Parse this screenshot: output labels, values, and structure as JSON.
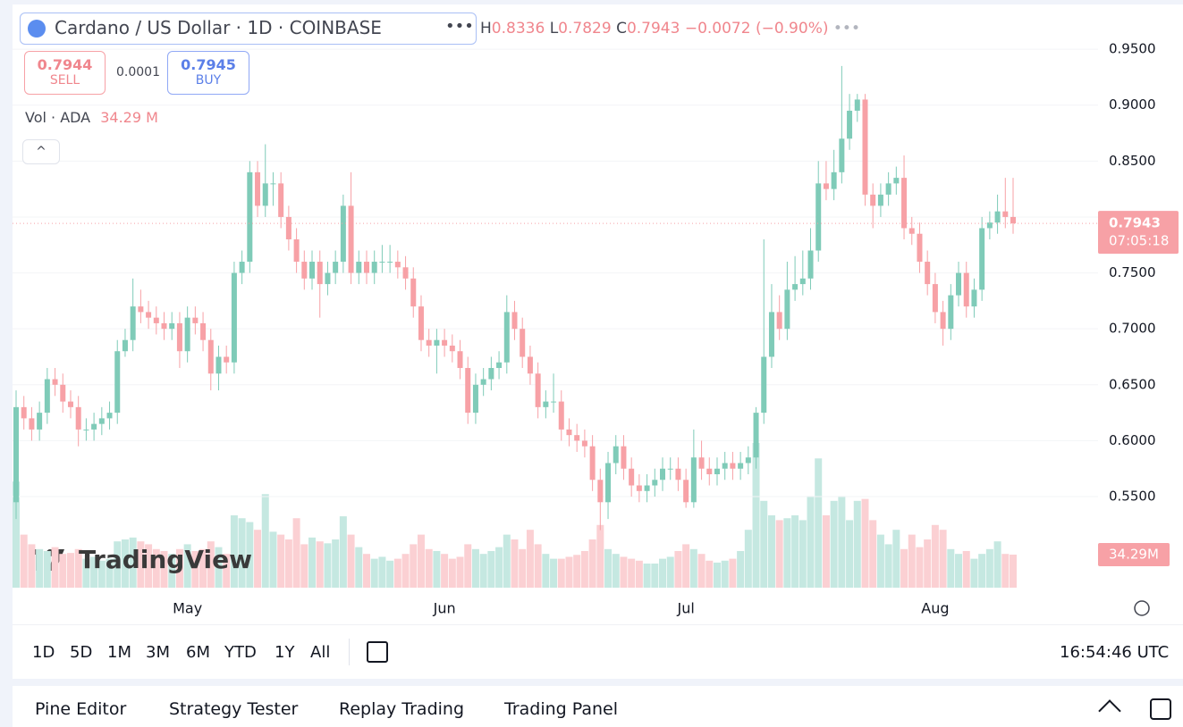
{
  "header": {
    "symbol": "Cardano / US Dollar · 1D · COINBASE",
    "ohlc": [
      {
        "key": "H",
        "value": "0.8336"
      },
      {
        "key": "L",
        "value": "0.7829"
      },
      {
        "key": "C",
        "value": "0.7943"
      }
    ],
    "change": "−0.0072 (−0.90%)",
    "sell": {
      "price": "0.7944",
      "label": "SELL"
    },
    "spread": "0.0001",
    "buy": {
      "price": "0.7945",
      "label": "BUY"
    },
    "volume_legend": {
      "label": "Vol · ADA",
      "value": "34.29 M"
    }
  },
  "chart_data": {
    "type": "candlestick",
    "categories": [
      null,
      null,
      null,
      null,
      null,
      null,
      null,
      null,
      null,
      null,
      null,
      null,
      null,
      null,
      null,
      null,
      null,
      null,
      null,
      null,
      null,
      null,
      "May",
      null,
      null,
      null,
      null,
      null,
      null,
      null,
      null,
      null,
      null,
      null,
      null,
      null,
      null,
      null,
      null,
      null,
      null,
      null,
      null,
      null,
      null,
      null,
      null,
      null,
      null,
      null,
      null,
      null,
      null,
      null,
      null,
      "Jun",
      null,
      null,
      null,
      null,
      null,
      null,
      null,
      null,
      null,
      null,
      null,
      null,
      null,
      null,
      null,
      null,
      null,
      null,
      null,
      null,
      null,
      null,
      null,
      null,
      null,
      null,
      null,
      null,
      null,
      null,
      "Jul",
      null,
      null,
      null,
      null,
      null,
      null,
      null,
      null,
      null,
      null,
      null,
      null,
      null,
      null,
      null,
      null,
      null,
      null,
      null,
      null,
      null,
      null,
      null,
      null,
      null,
      null,
      null,
      null,
      null,
      null,
      null,
      "Aug",
      null,
      null,
      null,
      null,
      null,
      null,
      null,
      null,
      null,
      null
    ],
    "open": [
      0.545,
      0.63,
      0.62,
      0.61,
      0.625,
      0.655,
      0.65,
      0.635,
      0.63,
      0.61,
      0.61,
      0.615,
      0.62,
      0.625,
      0.68,
      0.69,
      0.72,
      0.715,
      0.71,
      0.705,
      0.7,
      0.705,
      0.68,
      0.71,
      0.705,
      0.69,
      0.66,
      0.675,
      0.67,
      0.75,
      0.76,
      0.84,
      0.81,
      0.83,
      0.83,
      0.8,
      0.78,
      0.76,
      0.745,
      0.76,
      0.74,
      0.75,
      0.76,
      0.81,
      0.75,
      0.76,
      0.75,
      0.76,
      0.76,
      0.76,
      0.755,
      0.745,
      0.72,
      0.69,
      0.685,
      0.69,
      0.685,
      0.68,
      0.665,
      0.625,
      0.65,
      0.655,
      0.665,
      0.67,
      0.715,
      0.7,
      0.675,
      0.66,
      0.63,
      0.635,
      0.635,
      0.61,
      0.605,
      0.6,
      0.595,
      0.565,
      0.545,
      0.58,
      0.595,
      0.575,
      0.56,
      0.555,
      0.56,
      0.565,
      0.575,
      0.575,
      0.565,
      0.545,
      0.585,
      0.575,
      0.57,
      0.575,
      0.58,
      0.575,
      0.58,
      0.585,
      0.625,
      0.675,
      0.715,
      0.7,
      0.735,
      0.74,
      0.745,
      0.77,
      0.83,
      0.825,
      0.84,
      0.87,
      0.895,
      0.905,
      0.82,
      0.81,
      0.82,
      0.83,
      0.835,
      0.79,
      0.785,
      0.76,
      0.74,
      0.715,
      0.7,
      0.73,
      0.75,
      0.72,
      0.735,
      0.79,
      0.795,
      0.805,
      0.8
    ],
    "high": [
      0.645,
      0.64,
      0.63,
      0.635,
      0.665,
      0.665,
      0.66,
      0.645,
      0.64,
      0.62,
      0.625,
      0.63,
      0.635,
      0.69,
      0.7,
      0.745,
      0.735,
      0.725,
      0.72,
      0.715,
      0.715,
      0.715,
      0.72,
      0.72,
      0.715,
      0.7,
      0.685,
      0.685,
      0.76,
      0.77,
      0.85,
      0.85,
      0.865,
      0.84,
      0.84,
      0.81,
      0.79,
      0.77,
      0.77,
      0.77,
      0.76,
      0.77,
      0.82,
      0.84,
      0.77,
      0.77,
      0.77,
      0.775,
      0.775,
      0.77,
      0.765,
      0.755,
      0.73,
      0.7,
      0.7,
      0.7,
      0.695,
      0.69,
      0.675,
      0.66,
      0.665,
      0.675,
      0.68,
      0.73,
      0.725,
      0.71,
      0.685,
      0.67,
      0.645,
      0.66,
      0.645,
      0.62,
      0.615,
      0.61,
      0.605,
      0.575,
      0.59,
      0.605,
      0.605,
      0.585,
      0.57,
      0.57,
      0.575,
      0.585,
      0.585,
      0.585,
      0.575,
      0.61,
      0.6,
      0.585,
      0.585,
      0.59,
      0.59,
      0.59,
      0.595,
      0.63,
      0.78,
      0.74,
      0.73,
      0.76,
      0.765,
      0.77,
      0.79,
      0.85,
      0.85,
      0.86,
      0.935,
      0.91,
      0.91,
      0.91,
      0.83,
      0.83,
      0.84,
      0.845,
      0.855,
      0.8,
      0.795,
      0.77,
      0.75,
      0.725,
      0.74,
      0.76,
      0.76,
      0.745,
      0.8,
      0.805,
      0.82,
      0.835,
      0.835
    ],
    "low": [
      0.53,
      0.61,
      0.6,
      0.6,
      0.615,
      0.64,
      0.625,
      0.62,
      0.595,
      0.6,
      0.6,
      0.605,
      0.61,
      0.615,
      0.675,
      0.68,
      0.705,
      0.7,
      0.695,
      0.69,
      0.69,
      0.665,
      0.67,
      0.695,
      0.68,
      0.645,
      0.645,
      0.66,
      0.66,
      0.74,
      0.75,
      0.8,
      0.8,
      0.81,
      0.79,
      0.77,
      0.75,
      0.735,
      0.735,
      0.71,
      0.73,
      0.74,
      0.75,
      0.74,
      0.74,
      0.74,
      0.74,
      0.75,
      0.75,
      0.745,
      0.735,
      0.71,
      0.68,
      0.675,
      0.66,
      0.675,
      0.67,
      0.655,
      0.615,
      0.615,
      0.64,
      0.645,
      0.655,
      0.66,
      0.69,
      0.665,
      0.65,
      0.62,
      0.62,
      0.625,
      0.6,
      0.595,
      0.59,
      0.585,
      0.555,
      0.52,
      0.53,
      0.57,
      0.565,
      0.55,
      0.545,
      0.545,
      0.55,
      0.555,
      0.565,
      0.555,
      0.54,
      0.54,
      0.565,
      0.56,
      0.56,
      0.565,
      0.565,
      0.565,
      0.57,
      0.575,
      0.615,
      0.665,
      0.69,
      0.69,
      0.725,
      0.73,
      0.735,
      0.76,
      0.815,
      0.815,
      0.83,
      0.86,
      0.885,
      0.81,
      0.79,
      0.8,
      0.81,
      0.82,
      0.78,
      0.775,
      0.75,
      0.73,
      0.705,
      0.685,
      0.69,
      0.72,
      0.71,
      0.71,
      0.725,
      0.78,
      0.785,
      0.79,
      0.785
    ],
    "close": [
      0.63,
      0.62,
      0.61,
      0.625,
      0.655,
      0.65,
      0.635,
      0.63,
      0.61,
      0.61,
      0.615,
      0.62,
      0.625,
      0.68,
      0.69,
      0.72,
      0.715,
      0.71,
      0.705,
      0.7,
      0.705,
      0.68,
      0.71,
      0.705,
      0.69,
      0.66,
      0.675,
      0.67,
      0.75,
      0.76,
      0.84,
      0.81,
      0.83,
      0.83,
      0.8,
      0.78,
      0.76,
      0.745,
      0.76,
      0.74,
      0.75,
      0.76,
      0.81,
      0.75,
      0.76,
      0.75,
      0.76,
      0.76,
      0.76,
      0.755,
      0.745,
      0.72,
      0.69,
      0.685,
      0.69,
      0.685,
      0.68,
      0.665,
      0.625,
      0.65,
      0.655,
      0.665,
      0.67,
      0.715,
      0.7,
      0.675,
      0.66,
      0.63,
      0.635,
      0.635,
      0.61,
      0.605,
      0.6,
      0.595,
      0.565,
      0.545,
      0.58,
      0.595,
      0.575,
      0.56,
      0.555,
      0.56,
      0.565,
      0.575,
      0.575,
      0.565,
      0.545,
      0.585,
      0.575,
      0.57,
      0.575,
      0.58,
      0.575,
      0.58,
      0.585,
      0.625,
      0.675,
      0.715,
      0.7,
      0.735,
      0.74,
      0.745,
      0.77,
      0.83,
      0.825,
      0.84,
      0.87,
      0.895,
      0.905,
      0.82,
      0.81,
      0.82,
      0.83,
      0.835,
      0.79,
      0.785,
      0.76,
      0.74,
      0.715,
      0.7,
      0.73,
      0.75,
      0.72,
      0.735,
      0.79,
      0.795,
      0.805,
      0.8,
      0.7943
    ],
    "volume": [
      110,
      55,
      45,
      40,
      38,
      42,
      35,
      36,
      40,
      30,
      32,
      28,
      30,
      48,
      50,
      52,
      48,
      45,
      40,
      38,
      35,
      40,
      45,
      38,
      40,
      48,
      42,
      35,
      75,
      72,
      68,
      60,
      97,
      58,
      55,
      50,
      72,
      45,
      52,
      48,
      46,
      50,
      74,
      55,
      42,
      35,
      30,
      32,
      28,
      30,
      35,
      45,
      55,
      40,
      38,
      35,
      30,
      32,
      45,
      40,
      35,
      38,
      42,
      55,
      50,
      40,
      60,
      45,
      35,
      30,
      30,
      32,
      34,
      38,
      50,
      65,
      40,
      35,
      32,
      30,
      28,
      25,
      25,
      30,
      32,
      38,
      45,
      40,
      35,
      28,
      26,
      28,
      30,
      38,
      60,
      150,
      90,
      75,
      70,
      72,
      75,
      70,
      95,
      134,
      75,
      90,
      95,
      70,
      90,
      92,
      70,
      55,
      45,
      60,
      40,
      55,
      42,
      50,
      65,
      60,
      40,
      35,
      38,
      30,
      35,
      40,
      48,
      35,
      34.29
    ],
    "up_color": "#7fcbb8",
    "down_color": "#f7a1a6",
    "volume_up_color": "#c5e8e1",
    "volume_down_color": "#fbd0d3",
    "ylim": [
      0.467,
      0.982
    ],
    "yticks": [
      {
        "value": 0.95,
        "label": "0.9500"
      },
      {
        "value": 0.9,
        "label": "0.9000"
      },
      {
        "value": 0.85,
        "label": "0.8500"
      },
      {
        "value": 0.8,
        "label": "0.8000"
      },
      {
        "value": 0.75,
        "label": "0.7500"
      },
      {
        "value": 0.7,
        "label": "0.7000"
      },
      {
        "value": 0.65,
        "label": "0.6500"
      },
      {
        "value": 0.6,
        "label": "0.6000"
      },
      {
        "value": 0.55,
        "label": "0.5500"
      }
    ],
    "volume_lim": [
      0,
      175
    ],
    "last_price": {
      "value": 0.7943,
      "label": "0.7943",
      "countdown": "07:05:18"
    },
    "last_volume_label": "34.29M",
    "watermark": "TradingView"
  },
  "toolbar": {
    "ranges": [
      "1D",
      "5D",
      "1M",
      "3M",
      "6M",
      "YTD",
      "1Y",
      "All"
    ],
    "clock": "16:54:46 UTC"
  },
  "bottom_tabs": [
    "Pine Editor",
    "Strategy Tester",
    "Replay Trading",
    "Trading Panel"
  ]
}
